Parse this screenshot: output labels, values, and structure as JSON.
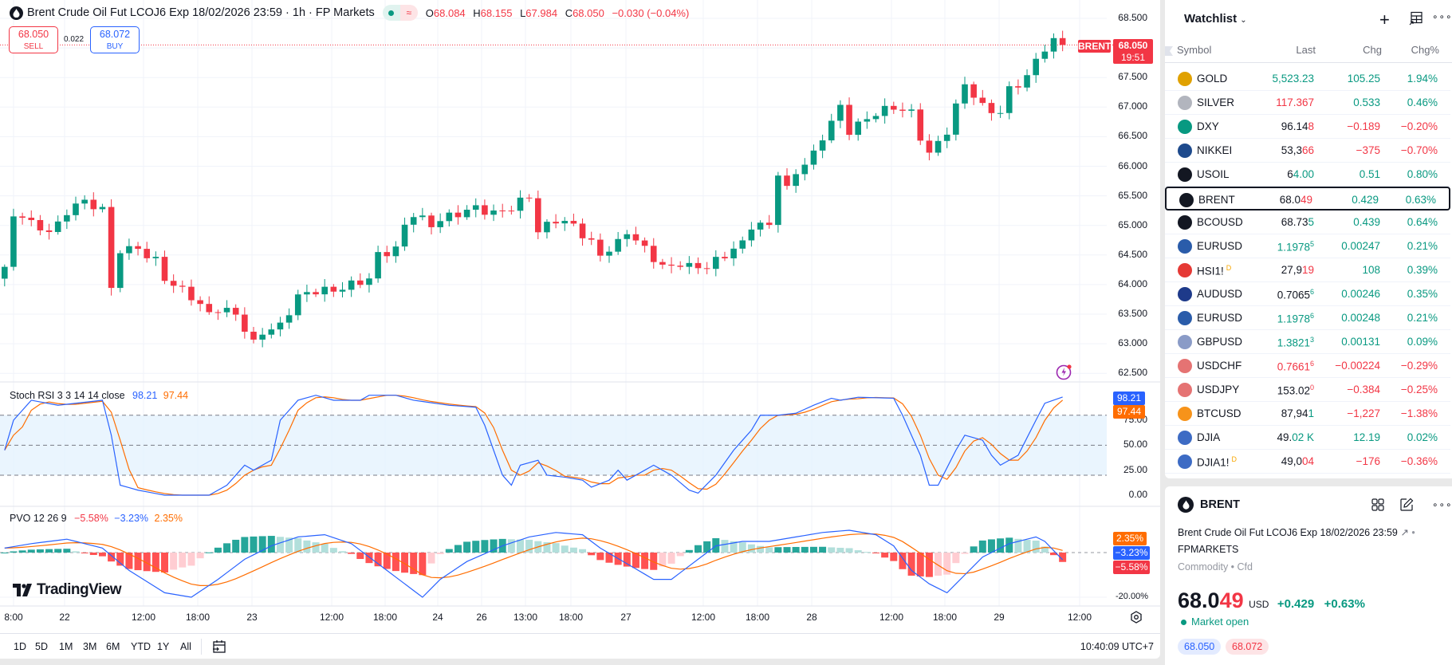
{
  "header": {
    "title": "Brent Crude Oil Fut LCOJ6 Exp 18/02/2026 23:59 · 1h · FP Markets",
    "ohlc": [
      {
        "k": "O",
        "v": "68.084"
      },
      {
        "k": "H",
        "v": "68.155"
      },
      {
        "k": "L",
        "v": "67.984"
      },
      {
        "k": "C",
        "v": "68.050"
      }
    ],
    "change": "−0.030 (−0.04%)"
  },
  "trade": {
    "sell_price": "68.050",
    "sell_label": "SELL",
    "spread": "0.022",
    "buy_price": "68.072",
    "buy_label": "BUY"
  },
  "price_axis": [
    "68.500",
    "68.000",
    "67.500",
    "67.000",
    "66.500",
    "66.000",
    "65.500",
    "65.000",
    "64.500",
    "64.000",
    "63.500",
    "63.000",
    "62.500"
  ],
  "price_tag": {
    "symbol": "BRENT",
    "price": "68.050",
    "countdown": "19:51"
  },
  "stoch": {
    "label": "Stoch RSI 3 3 14 14 close",
    "k_value": "98.21",
    "d_value": "97.44",
    "axis": [
      "75.00",
      "50.00",
      "25.00",
      "0.00"
    ]
  },
  "pvo": {
    "label": "PVO 12 26 9",
    "hist_value": "−5.58%",
    "pvo_value": "−3.23%",
    "signal_value": "2.35%",
    "axis_min": "-20.00%"
  },
  "time_axis": [
    "8:00",
    "22",
    "12:00",
    "18:00",
    "23",
    "12:00",
    "18:00",
    "24",
    "26",
    "13:00",
    "18:00",
    "27",
    "12:00",
    "18:00",
    "28",
    "12:00",
    "18:00",
    "29",
    "12:00"
  ],
  "toolbar": {
    "ranges": [
      "1D",
      "5D",
      "1M",
      "3M",
      "6M",
      "YTD",
      "1Y",
      "All"
    ],
    "clock": "10:40:09 UTC+7"
  },
  "logo": "TradingView",
  "colors": {
    "up": "#089981",
    "down": "#f23645",
    "k": "#2962ff",
    "d": "#ff6d00"
  },
  "chart_data": {
    "type": "candlestick",
    "interval": "1h",
    "ylim": [
      62.5,
      68.5
    ],
    "close_keypoints_by_bar": [
      [
        0,
        64.3
      ],
      [
        1,
        65.1
      ],
      [
        2,
        65.2
      ],
      [
        4,
        64.9
      ],
      [
        6,
        65.0
      ],
      [
        8,
        65.4
      ],
      [
        11,
        65.3
      ],
      [
        12,
        63.9
      ],
      [
        13,
        64.6
      ],
      [
        15,
        64.6
      ],
      [
        17,
        64.4
      ],
      [
        18,
        64.1
      ],
      [
        20,
        63.9
      ],
      [
        21,
        63.8
      ],
      [
        23,
        63.5
      ],
      [
        24,
        63.6
      ],
      [
        26,
        63.5
      ],
      [
        28,
        63.0
      ],
      [
        29,
        63.2
      ],
      [
        31,
        63.3
      ],
      [
        33,
        63.8
      ],
      [
        35,
        63.9
      ],
      [
        37,
        63.9
      ],
      [
        39,
        64.0
      ],
      [
        41,
        64.1
      ],
      [
        42,
        64.5
      ],
      [
        44,
        64.6
      ],
      [
        45,
        65.0
      ],
      [
        46,
        65.2
      ],
      [
        48,
        65.0
      ],
      [
        49,
        65.1
      ],
      [
        51,
        65.2
      ],
      [
        53,
        65.3
      ],
      [
        55,
        65.2
      ],
      [
        57,
        65.3
      ],
      [
        59,
        65.5
      ],
      [
        60,
        64.9
      ],
      [
        62,
        65.1
      ],
      [
        64,
        65.0
      ],
      [
        66,
        64.7
      ],
      [
        67,
        64.5
      ],
      [
        69,
        64.7
      ],
      [
        70,
        64.9
      ],
      [
        72,
        64.6
      ],
      [
        74,
        64.3
      ],
      [
        76,
        64.3
      ],
      [
        79,
        64.3
      ],
      [
        81,
        64.5
      ],
      [
        83,
        64.7
      ],
      [
        84,
        65.0
      ],
      [
        86,
        65.0
      ],
      [
        87,
        65.9
      ],
      [
        88,
        65.6
      ],
      [
        89,
        65.9
      ],
      [
        91,
        66.2
      ],
      [
        92,
        66.5
      ],
      [
        94,
        67.0
      ],
      [
        95,
        66.6
      ],
      [
        97,
        66.8
      ],
      [
        98,
        66.9
      ],
      [
        100,
        67.0
      ],
      [
        102,
        66.9
      ],
      [
        103,
        66.5
      ],
      [
        104,
        66.2
      ],
      [
        106,
        66.6
      ],
      [
        107,
        67.0
      ],
      [
        108,
        67.4
      ],
      [
        109,
        67.2
      ],
      [
        110,
        67.0
      ],
      [
        112,
        66.9
      ],
      [
        113,
        67.3
      ],
      [
        115,
        67.5
      ],
      [
        116,
        67.8
      ],
      [
        117,
        68.0
      ],
      [
        118,
        68.1
      ],
      [
        119,
        68.05
      ]
    ],
    "stoch_k_keypoints_by_bar": [
      [
        0,
        45
      ],
      [
        1,
        75
      ],
      [
        3,
        95
      ],
      [
        6,
        90
      ],
      [
        8,
        92
      ],
      [
        11,
        95
      ],
      [
        12,
        60
      ],
      [
        13,
        10
      ],
      [
        15,
        5
      ],
      [
        18,
        0
      ],
      [
        23,
        0
      ],
      [
        25,
        10
      ],
      [
        27,
        30
      ],
      [
        28,
        25
      ],
      [
        30,
        35
      ],
      [
        31,
        75
      ],
      [
        33,
        95
      ],
      [
        35,
        100
      ],
      [
        37,
        95
      ],
      [
        40,
        95
      ],
      [
        41,
        100
      ],
      [
        44,
        100
      ],
      [
        46,
        95
      ],
      [
        50,
        90
      ],
      [
        53,
        88
      ],
      [
        54,
        70
      ],
      [
        56,
        20
      ],
      [
        57,
        10
      ],
      [
        58,
        30
      ],
      [
        60,
        35
      ],
      [
        61,
        20
      ],
      [
        63,
        18
      ],
      [
        65,
        15
      ],
      [
        66,
        8
      ],
      [
        68,
        15
      ],
      [
        69,
        25
      ],
      [
        70,
        15
      ],
      [
        72,
        25
      ],
      [
        73,
        30
      ],
      [
        75,
        20
      ],
      [
        77,
        5
      ],
      [
        78,
        2
      ],
      [
        80,
        20
      ],
      [
        82,
        45
      ],
      [
        84,
        65
      ],
      [
        85,
        80
      ],
      [
        87,
        80
      ],
      [
        89,
        82
      ],
      [
        91,
        90
      ],
      [
        93,
        97
      ],
      [
        94,
        95
      ],
      [
        96,
        98
      ],
      [
        100,
        97
      ],
      [
        101,
        80
      ],
      [
        103,
        40
      ],
      [
        104,
        10
      ],
      [
        105,
        10
      ],
      [
        107,
        45
      ],
      [
        108,
        60
      ],
      [
        110,
        55
      ],
      [
        111,
        40
      ],
      [
        112,
        30
      ],
      [
        114,
        40
      ],
      [
        116,
        75
      ],
      [
        117,
        92
      ],
      [
        119,
        98.21
      ]
    ],
    "pvo_keypoints_by_bar": [
      [
        0,
        2
      ],
      [
        3,
        4
      ],
      [
        7,
        6
      ],
      [
        11,
        2
      ],
      [
        14,
        -8
      ],
      [
        18,
        -18
      ],
      [
        21,
        -20
      ],
      [
        24,
        -12
      ],
      [
        27,
        -3
      ],
      [
        30,
        3
      ],
      [
        33,
        7
      ],
      [
        36,
        8
      ],
      [
        39,
        4
      ],
      [
        42,
        -5
      ],
      [
        45,
        -14
      ],
      [
        47,
        -20
      ],
      [
        49,
        -12
      ],
      [
        52,
        -4
      ],
      [
        56,
        3
      ],
      [
        59,
        7
      ],
      [
        62,
        9
      ],
      [
        65,
        8
      ],
      [
        67,
        2
      ],
      [
        70,
        -5
      ],
      [
        73,
        -12
      ],
      [
        75,
        -12
      ],
      [
        78,
        -3
      ],
      [
        80,
        3
      ],
      [
        83,
        5
      ],
      [
        86,
        5
      ],
      [
        89,
        7
      ],
      [
        92,
        9
      ],
      [
        95,
        10
      ],
      [
        98,
        8
      ],
      [
        100,
        3
      ],
      [
        102,
        -8
      ],
      [
        104,
        -14
      ],
      [
        106,
        -18
      ],
      [
        108,
        -10
      ],
      [
        110,
        -2
      ],
      [
        113,
        4
      ],
      [
        116,
        7
      ],
      [
        117,
        5
      ],
      [
        119,
        -3.23
      ]
    ]
  },
  "watchlist": {
    "title": "Watchlist",
    "columns": [
      "Symbol",
      "Last",
      "Chg",
      "Chg%"
    ],
    "rows": [
      {
        "symbol": "GOLD",
        "icon": "gold-icon",
        "icon_color": "#e0a100",
        "last": [
          {
            "t": "5,523.23",
            "c": "up"
          }
        ],
        "chg": "105.25",
        "pct": "1.94%",
        "dir": "up"
      },
      {
        "symbol": "SILVER",
        "icon": "silver-icon",
        "icon_color": "#b2b5be",
        "last": [
          {
            "t": "117.367",
            "c": "dn"
          }
        ],
        "chg": "0.533",
        "pct": "0.46%",
        "dir": "up"
      },
      {
        "symbol": "DXY",
        "icon": "dollar-icon",
        "icon_color": "#089981",
        "last": [
          {
            "t": "96.14",
            "c": "nu"
          },
          {
            "t": "8",
            "c": "dn"
          }
        ],
        "chg": "−0.189",
        "pct": "−0.20%",
        "dir": "dn"
      },
      {
        "symbol": "NIKKEI",
        "icon": "nikkei-225-icon",
        "icon_color": "#1e4a8c",
        "last": [
          {
            "t": "53,3",
            "c": "nu"
          },
          {
            "t": "66",
            "c": "dn"
          }
        ],
        "chg": "−375",
        "pct": "−0.70%",
        "dir": "dn"
      },
      {
        "symbol": "USOIL",
        "icon": "oil-drop-icon",
        "icon_color": "#131722",
        "last": [
          {
            "t": "6",
            "c": "nu"
          },
          {
            "t": "4.00",
            "c": "up"
          }
        ],
        "chg": "0.51",
        "pct": "0.80%",
        "dir": "up"
      },
      {
        "symbol": "BRENT",
        "icon": "oil-drop-icon",
        "icon_color": "#131722",
        "last": [
          {
            "t": "68.0",
            "c": "nu"
          },
          {
            "t": "49",
            "c": "dn"
          }
        ],
        "chg": "0.429",
        "pct": "0.63%",
        "dir": "up",
        "selected": true
      },
      {
        "symbol": "BCOUSD",
        "icon": "oil-drop-icon",
        "icon_color": "#131722",
        "last": [
          {
            "t": "68.73",
            "c": "nu"
          },
          {
            "t": "5",
            "c": "up"
          }
        ],
        "chg": "0.439",
        "pct": "0.64%",
        "dir": "up"
      },
      {
        "symbol": "EURUSD",
        "icon": "eu-us-flag-icon",
        "icon_color": "#2a5caa",
        "last": [
          {
            "t": "1.1978",
            "c": "up"
          }
        ],
        "sup": {
          "t": "5",
          "c": "up"
        },
        "chg": "0.00247",
        "pct": "0.21%",
        "dir": "up"
      },
      {
        "symbol": "HSI1!",
        "badge": "D",
        "icon": "hsi-icon",
        "icon_color": "#e53935",
        "last": [
          {
            "t": "27,9",
            "c": "nu"
          },
          {
            "t": "19",
            "c": "dn"
          }
        ],
        "chg": "108",
        "pct": "0.39%",
        "dir": "up"
      },
      {
        "symbol": "AUDUSD",
        "icon": "au-us-flag-icon",
        "icon_color": "#1e3a8a",
        "last": [
          {
            "t": "0.7065",
            "c": "nu"
          }
        ],
        "sup": {
          "t": "6",
          "c": "up"
        },
        "chg": "0.00246",
        "pct": "0.35%",
        "dir": "up"
      },
      {
        "symbol": "EURUSD",
        "icon": "eu-us-flag-icon",
        "icon_color": "#2a5caa",
        "last": [
          {
            "t": "1.1978",
            "c": "up"
          }
        ],
        "sup": {
          "t": "6",
          "c": "up"
        },
        "chg": "0.00248",
        "pct": "0.21%",
        "dir": "up"
      },
      {
        "symbol": "GBPUSD",
        "icon": "gb-us-flag-icon",
        "icon_color": "#8a9bc7",
        "last": [
          {
            "t": "1.3821",
            "c": "up"
          }
        ],
        "sup": {
          "t": "3",
          "c": "up"
        },
        "chg": "0.00131",
        "pct": "0.09%",
        "dir": "up"
      },
      {
        "symbol": "USDCHF",
        "icon": "us-ch-flag-icon",
        "icon_color": "#e57373",
        "last": [
          {
            "t": "0.7661",
            "c": "dn"
          }
        ],
        "sup": {
          "t": "6",
          "c": "dn"
        },
        "chg": "−0.00224",
        "pct": "−0.29%",
        "dir": "dn"
      },
      {
        "symbol": "USDJPY",
        "icon": "us-jp-flag-icon",
        "icon_color": "#e57373",
        "last": [
          {
            "t": "153.02",
            "c": "nu"
          }
        ],
        "sup": {
          "t": "0",
          "c": "dn"
        },
        "chg": "−0.384",
        "pct": "−0.25%",
        "dir": "dn"
      },
      {
        "symbol": "BTCUSD",
        "icon": "bitcoin-icon",
        "icon_color": "#f7931a",
        "last": [
          {
            "t": "87,94",
            "c": "nu"
          },
          {
            "t": "1",
            "c": "up"
          }
        ],
        "chg": "−1,227",
        "pct": "−1.38%",
        "dir": "dn"
      },
      {
        "symbol": "DJIA",
        "icon": "us-flag-icon",
        "icon_color": "#3d6bc4",
        "last": [
          {
            "t": "49.",
            "c": "nu"
          },
          {
            "t": "02 K",
            "c": "up"
          }
        ],
        "chg": "12.19",
        "pct": "0.02%",
        "dir": "up"
      },
      {
        "symbol": "DJIA1!",
        "badge": "D",
        "icon": "us-flag-icon",
        "icon_color": "#3d6bc4",
        "last": [
          {
            "t": "49,0",
            "c": "nu"
          },
          {
            "t": "04",
            "c": "dn"
          }
        ],
        "chg": "−176",
        "pct": "−0.36%",
        "dir": "dn"
      }
    ]
  },
  "detail": {
    "symbol": "BRENT",
    "description": "Brent Crude Oil Fut LCOJ6 Exp 18/02/2026 23:59",
    "exchange": "FPMARKETS",
    "type": "Commodity • Cfd",
    "price_main": "68.0",
    "price_tail": "49",
    "currency": "USD",
    "change": "+0.429",
    "change_pct": "+0.63%",
    "status": "Market open",
    "bid": "68.050",
    "ask": "68.072"
  }
}
